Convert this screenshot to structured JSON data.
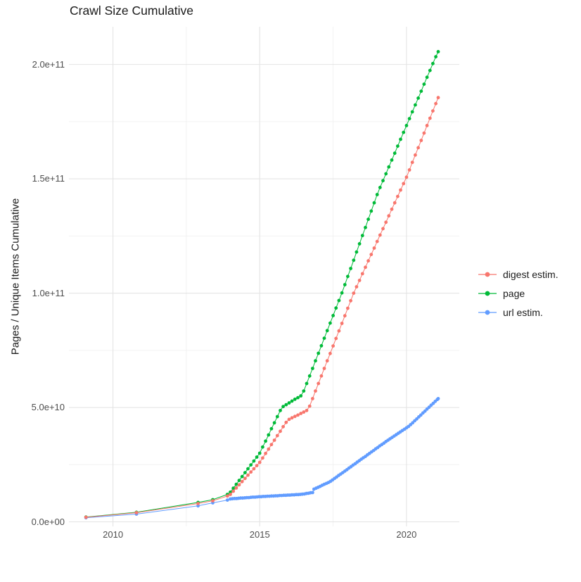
{
  "title": "Crawl Size Cumulative",
  "chart_data": {
    "type": "scatter",
    "title": "Crawl Size Cumulative",
    "xlabel": "",
    "ylabel": "Pages / Unique Items Cumulative",
    "legend_position": "right",
    "grid": "major and minor light gray gridlines on white panel",
    "value_unit_note": "point values are in units of 1e9 (billions); y tick labels shown in scientific notation",
    "x_domain": [
      2008.5,
      2021.8
    ],
    "y_domain_e9": [
      -2,
      216.5
    ],
    "x_ticks": [
      {
        "label": "2010",
        "value": 2010
      },
      {
        "label": "2015",
        "value": 2015
      },
      {
        "label": "2020",
        "value": 2020
      }
    ],
    "y_ticks": [
      {
        "label": "0.0e+00",
        "value": 0
      },
      {
        "label": "5.0e+10",
        "value": 50
      },
      {
        "label": "1.0e+11",
        "value": 100
      },
      {
        "label": "1.5e+11",
        "value": 150
      },
      {
        "label": "2.0e+11",
        "value": 200
      }
    ],
    "series": [
      {
        "name": "digest estim.",
        "color": "#F8766D",
        "points": [
          [
            2009.08,
            2.0
          ],
          [
            2010.8,
            4.0
          ],
          [
            2012.9,
            8.0
          ],
          [
            2013.4,
            9.2
          ],
          [
            2013.9,
            11.3
          ],
          [
            2014.0,
            12.0
          ],
          [
            2014.1,
            13.4
          ],
          [
            2014.2,
            14.8
          ],
          [
            2014.3,
            16.2
          ],
          [
            2014.4,
            17.6
          ],
          [
            2014.5,
            19.0
          ],
          [
            2014.6,
            20.4
          ],
          [
            2014.7,
            21.8
          ],
          [
            2014.8,
            23.2
          ],
          [
            2014.9,
            24.6
          ],
          [
            2015.0,
            26.0
          ],
          [
            2015.1,
            27.9
          ],
          [
            2015.2,
            29.9
          ],
          [
            2015.3,
            31.8
          ],
          [
            2015.4,
            33.8
          ],
          [
            2015.5,
            35.7
          ],
          [
            2015.6,
            37.7
          ],
          [
            2015.7,
            39.6
          ],
          [
            2015.8,
            41.6
          ],
          [
            2015.9,
            43.5
          ],
          [
            2016.0,
            44.8
          ],
          [
            2016.1,
            45.5
          ],
          [
            2016.2,
            46.1
          ],
          [
            2016.3,
            46.7
          ],
          [
            2016.4,
            47.4
          ],
          [
            2016.5,
            48.0
          ],
          [
            2016.6,
            48.7
          ],
          [
            2016.7,
            50.6
          ],
          [
            2016.8,
            53.9
          ],
          [
            2016.9,
            57.2
          ],
          [
            2017.0,
            60.5
          ],
          [
            2017.1,
            63.8
          ],
          [
            2017.2,
            67.1
          ],
          [
            2017.3,
            70.4
          ],
          [
            2017.4,
            73.6
          ],
          [
            2017.5,
            76.9
          ],
          [
            2017.6,
            80.2
          ],
          [
            2017.7,
            83.5
          ],
          [
            2017.8,
            86.8
          ],
          [
            2017.9,
            90.1
          ],
          [
            2018.0,
            93.4
          ],
          [
            2018.1,
            96.7
          ],
          [
            2018.2,
            100.0
          ],
          [
            2018.3,
            102.8
          ],
          [
            2018.4,
            105.6
          ],
          [
            2018.5,
            108.5
          ],
          [
            2018.6,
            111.3
          ],
          [
            2018.7,
            114.1
          ],
          [
            2018.8,
            116.9
          ],
          [
            2018.9,
            119.7
          ],
          [
            2019.0,
            122.6
          ],
          [
            2019.1,
            125.4
          ],
          [
            2019.2,
            128.2
          ],
          [
            2019.3,
            131.0
          ],
          [
            2019.4,
            133.8
          ],
          [
            2019.5,
            136.7
          ],
          [
            2019.6,
            139.5
          ],
          [
            2019.7,
            142.3
          ],
          [
            2019.8,
            145.1
          ],
          [
            2019.9,
            147.9
          ],
          [
            2020.0,
            150.7
          ],
          [
            2020.1,
            153.9
          ],
          [
            2020.2,
            157.2
          ],
          [
            2020.3,
            160.4
          ],
          [
            2020.4,
            163.6
          ],
          [
            2020.5,
            166.8
          ],
          [
            2020.6,
            170.0
          ],
          [
            2020.7,
            173.3
          ],
          [
            2020.8,
            176.5
          ],
          [
            2020.9,
            179.7
          ],
          [
            2021.0,
            182.9
          ],
          [
            2021.08,
            185.5
          ]
        ]
      },
      {
        "name": "page",
        "color": "#00BA38",
        "points": [
          [
            2009.08,
            2.1
          ],
          [
            2010.8,
            4.2
          ],
          [
            2012.9,
            8.5
          ],
          [
            2013.4,
            9.7
          ],
          [
            2013.9,
            12.0
          ],
          [
            2014.0,
            13.0
          ],
          [
            2014.1,
            14.7
          ],
          [
            2014.2,
            16.4
          ],
          [
            2014.3,
            18.1
          ],
          [
            2014.4,
            19.8
          ],
          [
            2014.5,
            21.5
          ],
          [
            2014.6,
            23.2
          ],
          [
            2014.7,
            24.9
          ],
          [
            2014.8,
            26.6
          ],
          [
            2014.9,
            28.3
          ],
          [
            2015.0,
            30.0
          ],
          [
            2015.1,
            32.7
          ],
          [
            2015.2,
            35.3
          ],
          [
            2015.3,
            38.0
          ],
          [
            2015.4,
            40.7
          ],
          [
            2015.5,
            43.3
          ],
          [
            2015.6,
            46.0
          ],
          [
            2015.7,
            48.7
          ],
          [
            2015.8,
            50.4
          ],
          [
            2015.9,
            51.2
          ],
          [
            2016.0,
            52.0
          ],
          [
            2016.1,
            52.8
          ],
          [
            2016.2,
            53.6
          ],
          [
            2016.3,
            54.3
          ],
          [
            2016.4,
            55.1
          ],
          [
            2016.5,
            57.2
          ],
          [
            2016.6,
            60.5
          ],
          [
            2016.7,
            63.8
          ],
          [
            2016.8,
            67.1
          ],
          [
            2016.9,
            70.4
          ],
          [
            2017.0,
            73.7
          ],
          [
            2017.1,
            77.0
          ],
          [
            2017.2,
            80.3
          ],
          [
            2017.3,
            83.6
          ],
          [
            2017.4,
            86.9
          ],
          [
            2017.5,
            90.2
          ],
          [
            2017.6,
            93.5
          ],
          [
            2017.7,
            96.8
          ],
          [
            2017.8,
            100.1
          ],
          [
            2017.9,
            103.7
          ],
          [
            2018.0,
            107.3
          ],
          [
            2018.1,
            110.8
          ],
          [
            2018.2,
            114.4
          ],
          [
            2018.3,
            118.0
          ],
          [
            2018.4,
            121.6
          ],
          [
            2018.5,
            125.2
          ],
          [
            2018.6,
            128.7
          ],
          [
            2018.7,
            132.3
          ],
          [
            2018.8,
            135.9
          ],
          [
            2018.9,
            139.5
          ],
          [
            2019.0,
            143.1
          ],
          [
            2019.1,
            146.2
          ],
          [
            2019.2,
            149.2
          ],
          [
            2019.3,
            152.2
          ],
          [
            2019.4,
            155.2
          ],
          [
            2019.5,
            158.2
          ],
          [
            2019.6,
            161.2
          ],
          [
            2019.7,
            164.3
          ],
          [
            2019.8,
            167.3
          ],
          [
            2019.9,
            170.3
          ],
          [
            2020.0,
            173.3
          ],
          [
            2020.1,
            176.3
          ],
          [
            2020.2,
            179.3
          ],
          [
            2020.3,
            182.3
          ],
          [
            2020.4,
            185.3
          ],
          [
            2020.5,
            188.3
          ],
          [
            2020.6,
            191.4
          ],
          [
            2020.7,
            194.4
          ],
          [
            2020.8,
            197.4
          ],
          [
            2020.9,
            200.4
          ],
          [
            2021.0,
            203.4
          ],
          [
            2021.08,
            205.6
          ]
        ]
      },
      {
        "name": "url estim.",
        "color": "#619CFF",
        "points": [
          [
            2009.08,
            1.8
          ],
          [
            2010.8,
            3.4
          ],
          [
            2012.9,
            7.0
          ],
          [
            2013.4,
            8.3
          ],
          [
            2013.9,
            9.5
          ],
          [
            2014.0,
            10.0
          ],
          [
            2014.07,
            10.1
          ],
          [
            2014.14,
            10.2
          ],
          [
            2014.21,
            10.2
          ],
          [
            2014.28,
            10.3
          ],
          [
            2014.35,
            10.4
          ],
          [
            2014.42,
            10.4
          ],
          [
            2014.49,
            10.5
          ],
          [
            2014.56,
            10.6
          ],
          [
            2014.63,
            10.6
          ],
          [
            2014.7,
            10.7
          ],
          [
            2014.77,
            10.8
          ],
          [
            2014.84,
            10.8
          ],
          [
            2014.91,
            10.9
          ],
          [
            2014.98,
            11.0
          ],
          [
            2015.05,
            11.0
          ],
          [
            2015.12,
            11.1
          ],
          [
            2015.19,
            11.1
          ],
          [
            2015.26,
            11.2
          ],
          [
            2015.33,
            11.2
          ],
          [
            2015.4,
            11.3
          ],
          [
            2015.47,
            11.3
          ],
          [
            2015.54,
            11.4
          ],
          [
            2015.61,
            11.4
          ],
          [
            2015.68,
            11.5
          ],
          [
            2015.75,
            11.5
          ],
          [
            2015.82,
            11.6
          ],
          [
            2015.89,
            11.6
          ],
          [
            2015.96,
            11.7
          ],
          [
            2016.03,
            11.7
          ],
          [
            2016.1,
            11.8
          ],
          [
            2016.17,
            11.8
          ],
          [
            2016.24,
            11.9
          ],
          [
            2016.31,
            11.9
          ],
          [
            2016.38,
            12.0
          ],
          [
            2016.45,
            12.1
          ],
          [
            2016.52,
            12.2
          ],
          [
            2016.59,
            12.4
          ],
          [
            2016.66,
            12.5
          ],
          [
            2016.73,
            12.7
          ],
          [
            2016.8,
            12.8
          ],
          [
            2016.85,
            14.3
          ],
          [
            2016.92,
            14.7
          ],
          [
            2016.99,
            15.1
          ],
          [
            2017.06,
            15.5
          ],
          [
            2017.13,
            16.0
          ],
          [
            2017.2,
            16.4
          ],
          [
            2017.27,
            16.8
          ],
          [
            2017.34,
            17.2
          ],
          [
            2017.41,
            17.7
          ],
          [
            2017.48,
            18.3
          ],
          [
            2017.55,
            19.0
          ],
          [
            2017.62,
            19.6
          ],
          [
            2017.69,
            20.3
          ],
          [
            2017.76,
            20.9
          ],
          [
            2017.83,
            21.5
          ],
          [
            2017.9,
            22.2
          ],
          [
            2017.97,
            22.8
          ],
          [
            2018.04,
            23.5
          ],
          [
            2018.11,
            24.1
          ],
          [
            2018.18,
            24.8
          ],
          [
            2018.25,
            25.4
          ],
          [
            2018.32,
            26.1
          ],
          [
            2018.39,
            26.7
          ],
          [
            2018.46,
            27.4
          ],
          [
            2018.53,
            28.0
          ],
          [
            2018.6,
            28.6
          ],
          [
            2018.67,
            29.3
          ],
          [
            2018.74,
            29.9
          ],
          [
            2018.81,
            30.6
          ],
          [
            2018.88,
            31.2
          ],
          [
            2018.95,
            31.9
          ],
          [
            2019.02,
            32.5
          ],
          [
            2019.09,
            33.2
          ],
          [
            2019.16,
            33.8
          ],
          [
            2019.23,
            34.4
          ],
          [
            2019.3,
            35.1
          ],
          [
            2019.37,
            35.7
          ],
          [
            2019.44,
            36.3
          ],
          [
            2019.51,
            36.9
          ],
          [
            2019.58,
            37.5
          ],
          [
            2019.65,
            38.1
          ],
          [
            2019.72,
            38.7
          ],
          [
            2019.79,
            39.3
          ],
          [
            2019.86,
            39.9
          ],
          [
            2019.93,
            40.5
          ],
          [
            2020.0,
            41.1
          ],
          [
            2020.07,
            41.7
          ],
          [
            2020.14,
            42.5
          ],
          [
            2020.21,
            43.3
          ],
          [
            2020.28,
            44.2
          ],
          [
            2020.35,
            45.0
          ],
          [
            2020.42,
            45.9
          ],
          [
            2020.49,
            46.7
          ],
          [
            2020.56,
            47.6
          ],
          [
            2020.63,
            48.4
          ],
          [
            2020.7,
            49.3
          ],
          [
            2020.77,
            50.1
          ],
          [
            2020.84,
            51.0
          ],
          [
            2020.91,
            51.8
          ],
          [
            2020.98,
            52.7
          ],
          [
            2021.05,
            53.5
          ],
          [
            2021.08,
            53.9
          ]
        ]
      }
    ],
    "colors": {
      "digest_estim": "#F8766D",
      "page": "#00BA38",
      "url_estim": "#619CFF",
      "grid_major": "#e4e4e4",
      "grid_minor": "#f0f0f0",
      "tick_text": "#4d4d4d",
      "title_text": "#1a1a1a"
    }
  }
}
